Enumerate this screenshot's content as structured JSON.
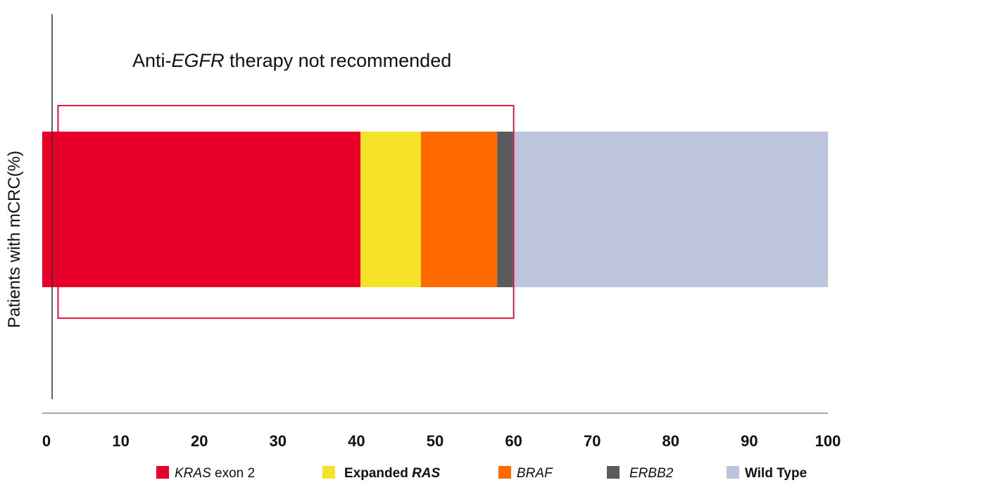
{
  "chart_data": {
    "type": "bar",
    "orientation": "horizontal",
    "stacked": true,
    "title": "",
    "xlabel": "",
    "ylabel": "Patients with mCRC(%)",
    "xlim": [
      0,
      100
    ],
    "x_ticks": [
      "0",
      "10",
      "20",
      "30",
      "40",
      "50",
      "60",
      "70",
      "80",
      "90",
      "100"
    ],
    "grid": false,
    "legend_position": "bottom",
    "categories": [
      ""
    ],
    "series": [
      {
        "name_italic": "KRAS",
        "name_rest": " exon 2",
        "color": "#e8002a",
        "values": [
          40.5
        ]
      },
      {
        "name_italic": "",
        "name_rest": "Expanded ",
        "name_italic_after": "RAS",
        "color": "#f7e22a",
        "values": [
          7.7
        ]
      },
      {
        "name_italic": "BRAF",
        "name_rest": "",
        "color": "#ff6a00",
        "values": [
          9.7
        ]
      },
      {
        "name_italic": "ERBB2",
        "name_rest": "",
        "color": "#5b5b5b",
        "values": [
          2.0
        ]
      },
      {
        "name_italic": "",
        "name_rest": "Wild Type",
        "color": "#bdc5dd",
        "values": [
          40.1
        ]
      }
    ],
    "annotation": {
      "prefix": "Anti-",
      "italic": "EGFR",
      "suffix": " therapy not recommended",
      "span": [
        2,
        60
      ],
      "border_color": "#e8002a"
    }
  }
}
